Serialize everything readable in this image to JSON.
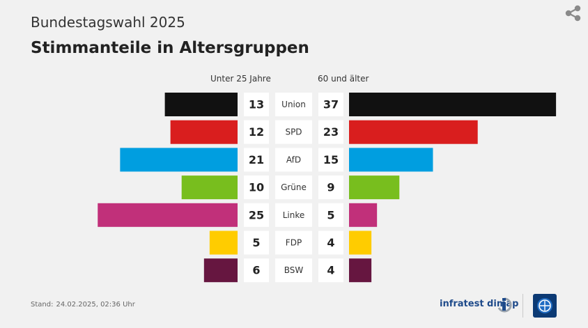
{
  "header": {
    "supertitle": "Bundestagswahl 2025",
    "title": "Stimmanteile in Altersgruppen"
  },
  "chart_data": {
    "type": "bar",
    "orientation": "horizontal-butterfly",
    "categories": [
      "Union",
      "SPD",
      "AfD",
      "Grüne",
      "Linke",
      "FDP",
      "BSW"
    ],
    "series": [
      {
        "name": "Unter 25 Jahre",
        "values": [
          13,
          12,
          21,
          10,
          25,
          5,
          6
        ]
      },
      {
        "name": "60 und älter",
        "values": [
          37,
          23,
          15,
          9,
          5,
          4,
          4
        ]
      }
    ],
    "colors": [
      "#111111",
      "#d91e1e",
      "#009ee0",
      "#78be1e",
      "#c1307a",
      "#ffcc00",
      "#661640"
    ],
    "units": "%"
  },
  "footer": {
    "stand_label": "Stand:",
    "stand_value": "24.02.2025, 02:36 Uhr",
    "brand": "infratest dimap"
  },
  "icons": {
    "share": "share-icon",
    "brand_mark": "infratest-logo-icon",
    "broadcaster": "tagesschau-logo-icon"
  }
}
